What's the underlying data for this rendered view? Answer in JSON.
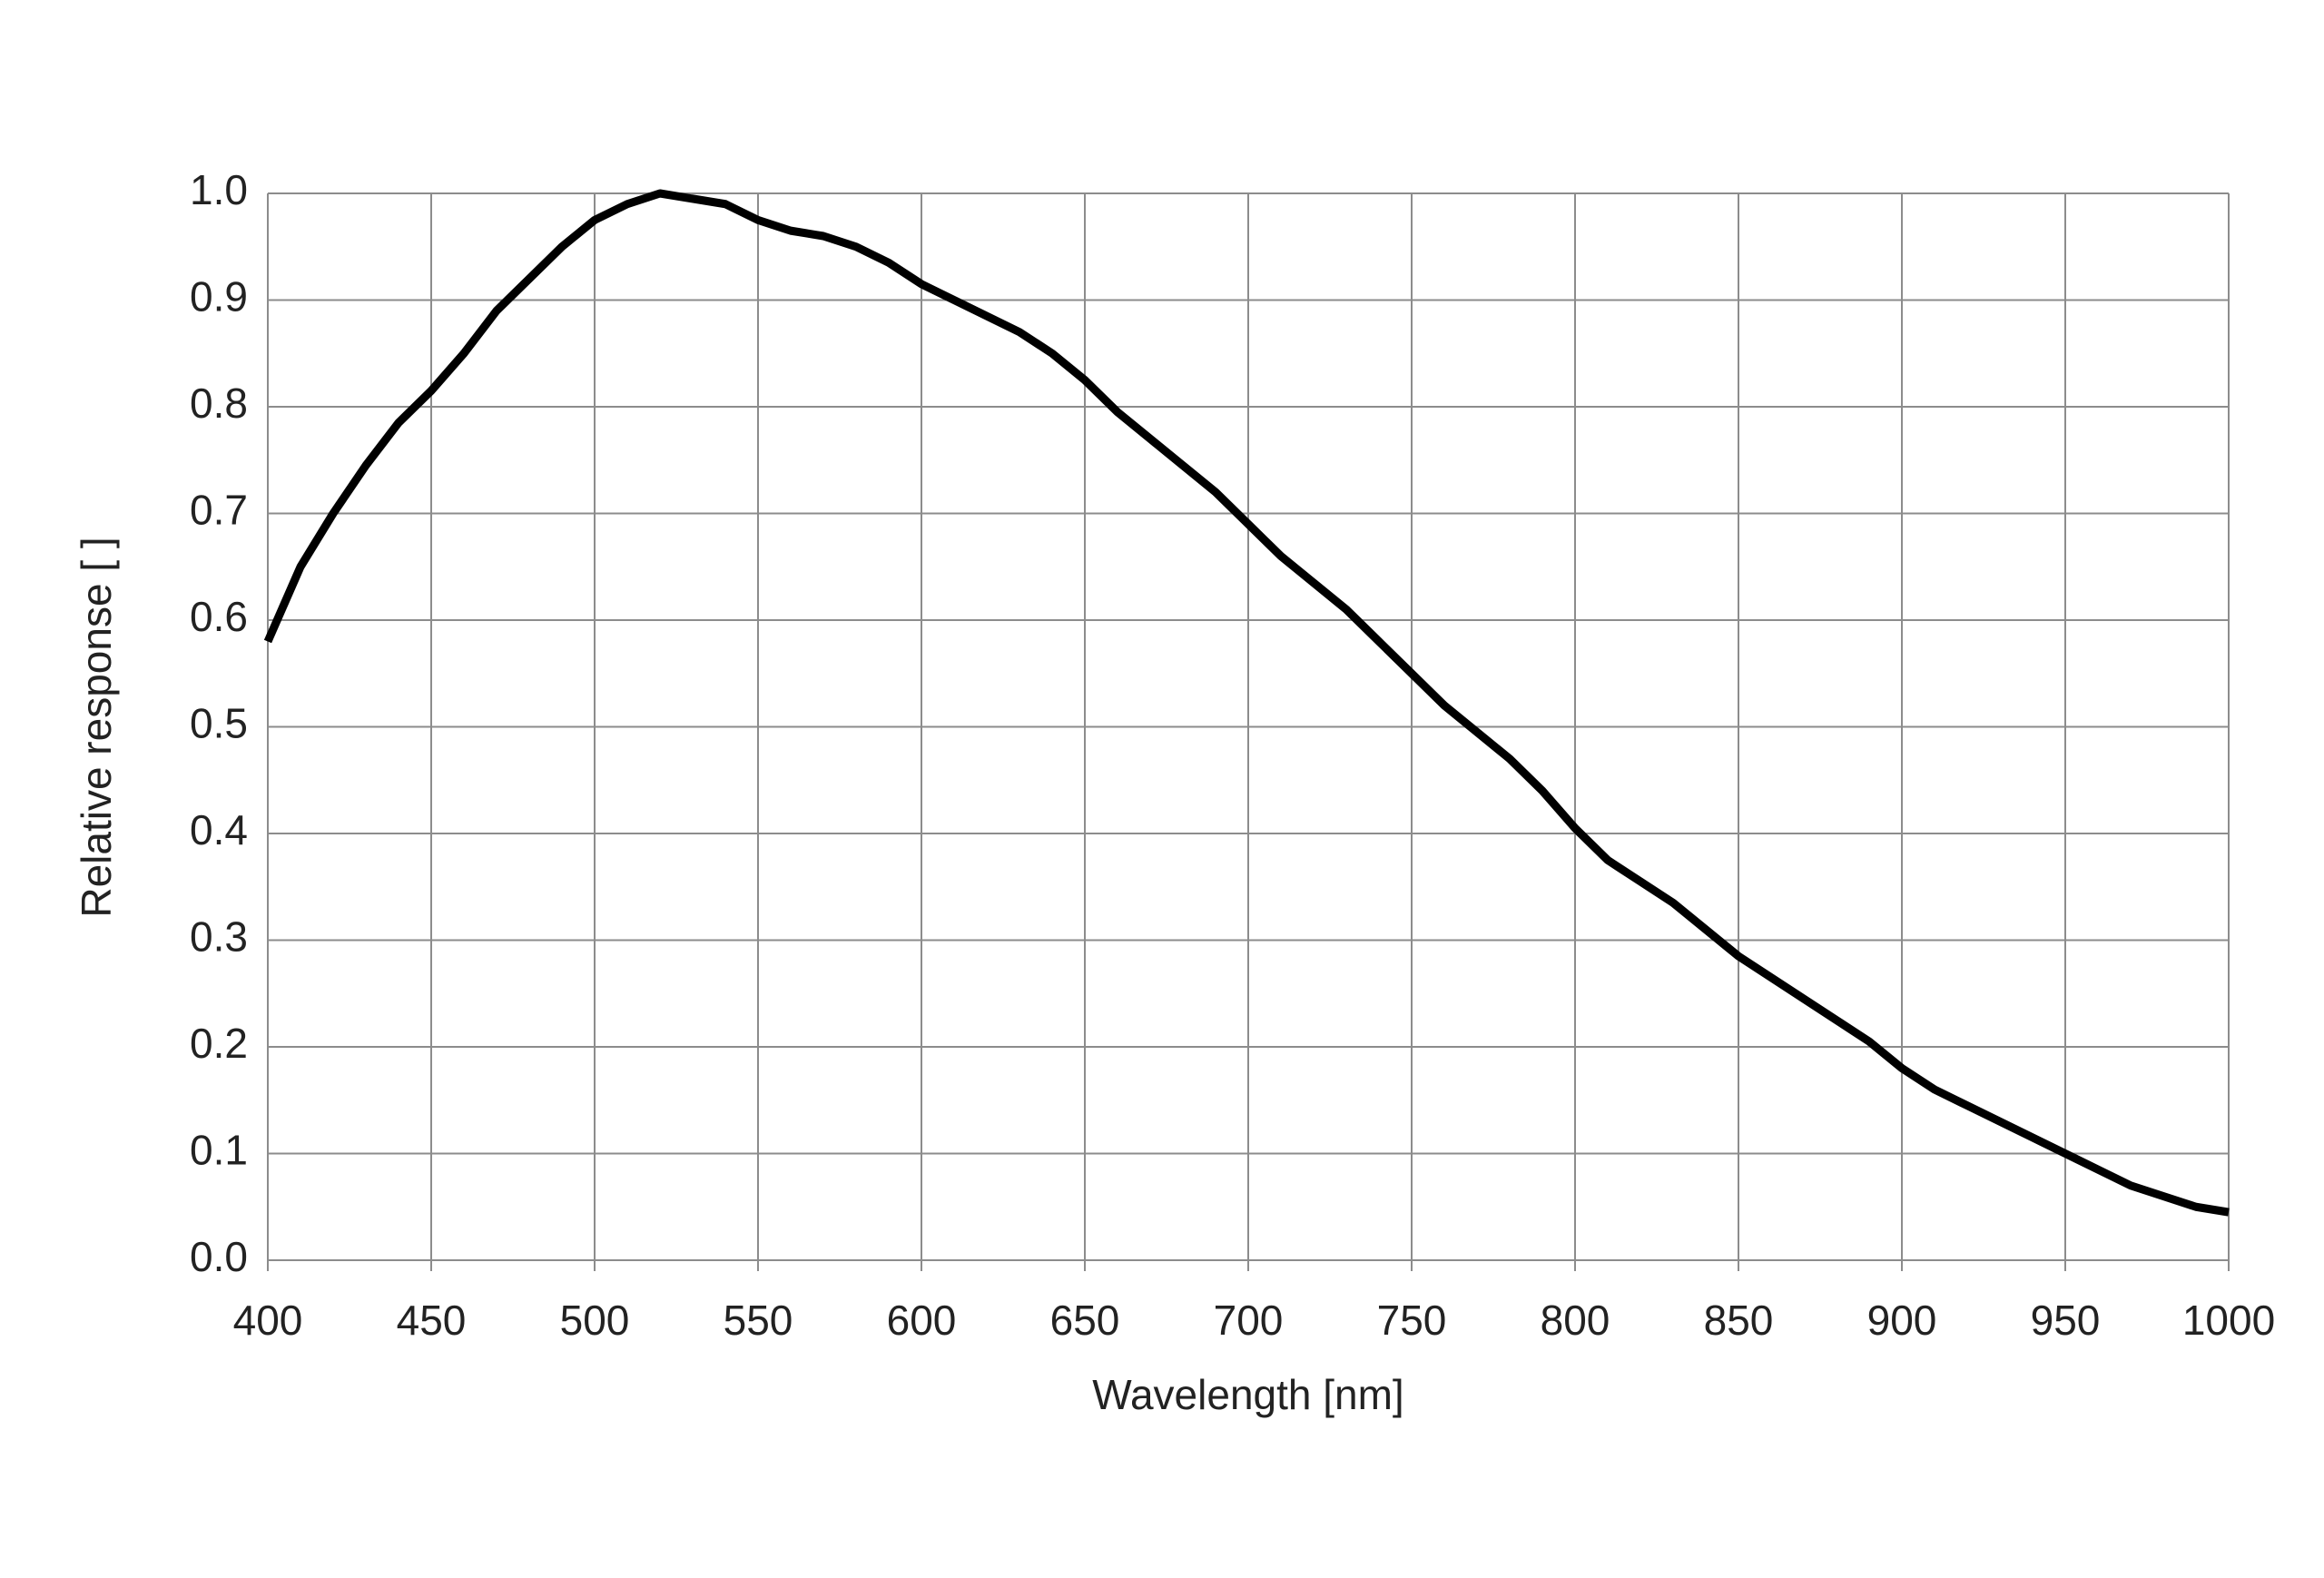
{
  "chart_data": {
    "type": "line",
    "x_label": "Wavelength [nm]",
    "y_label": "Relative response [ ]",
    "x": [
      400,
      410,
      420,
      430,
      440,
      450,
      460,
      470,
      480,
      490,
      500,
      510,
      520,
      530,
      540,
      550,
      560,
      570,
      580,
      590,
      600,
      610,
      620,
      630,
      640,
      650,
      660,
      670,
      680,
      690,
      700,
      710,
      720,
      730,
      740,
      750,
      760,
      770,
      780,
      790,
      800,
      810,
      820,
      830,
      840,
      850,
      860,
      870,
      880,
      890,
      900,
      910,
      920,
      930,
      940,
      950,
      960,
      970,
      980,
      990,
      1000
    ],
    "series": [
      {
        "color": "#000000",
        "values": [
          0.58,
          0.65,
          0.7,
          0.745,
          0.785,
          0.815,
          0.85,
          0.89,
          0.92,
          0.95,
          0.975,
          0.99,
          1.0,
          0.995,
          0.99,
          0.975,
          0.965,
          0.96,
          0.95,
          0.935,
          0.915,
          0.9,
          0.885,
          0.87,
          0.85,
          0.825,
          0.795,
          0.77,
          0.745,
          0.72,
          0.69,
          0.66,
          0.635,
          0.61,
          0.58,
          0.55,
          0.52,
          0.495,
          0.47,
          0.44,
          0.405,
          0.375,
          0.355,
          0.335,
          0.31,
          0.285,
          0.265,
          0.245,
          0.225,
          0.205,
          0.18,
          0.16,
          0.145,
          0.13,
          0.115,
          0.1,
          0.085,
          0.07,
          0.06,
          0.05,
          0.045
        ]
      }
    ],
    "xlim": [
      400,
      1000
    ],
    "xticks": [
      400,
      450,
      500,
      550,
      600,
      650,
      700,
      750,
      800,
      850,
      900,
      950,
      1000
    ],
    "ylim": [
      0,
      1
    ],
    "yticks": [
      {
        "value": 0,
        "label": "0.0"
      },
      0.1,
      0.2,
      0.3,
      0.4,
      0.5,
      0.6,
      0.7,
      0.8,
      0.9,
      {
        "value": 1,
        "label": "1.0"
      }
    ],
    "grid": true
  }
}
